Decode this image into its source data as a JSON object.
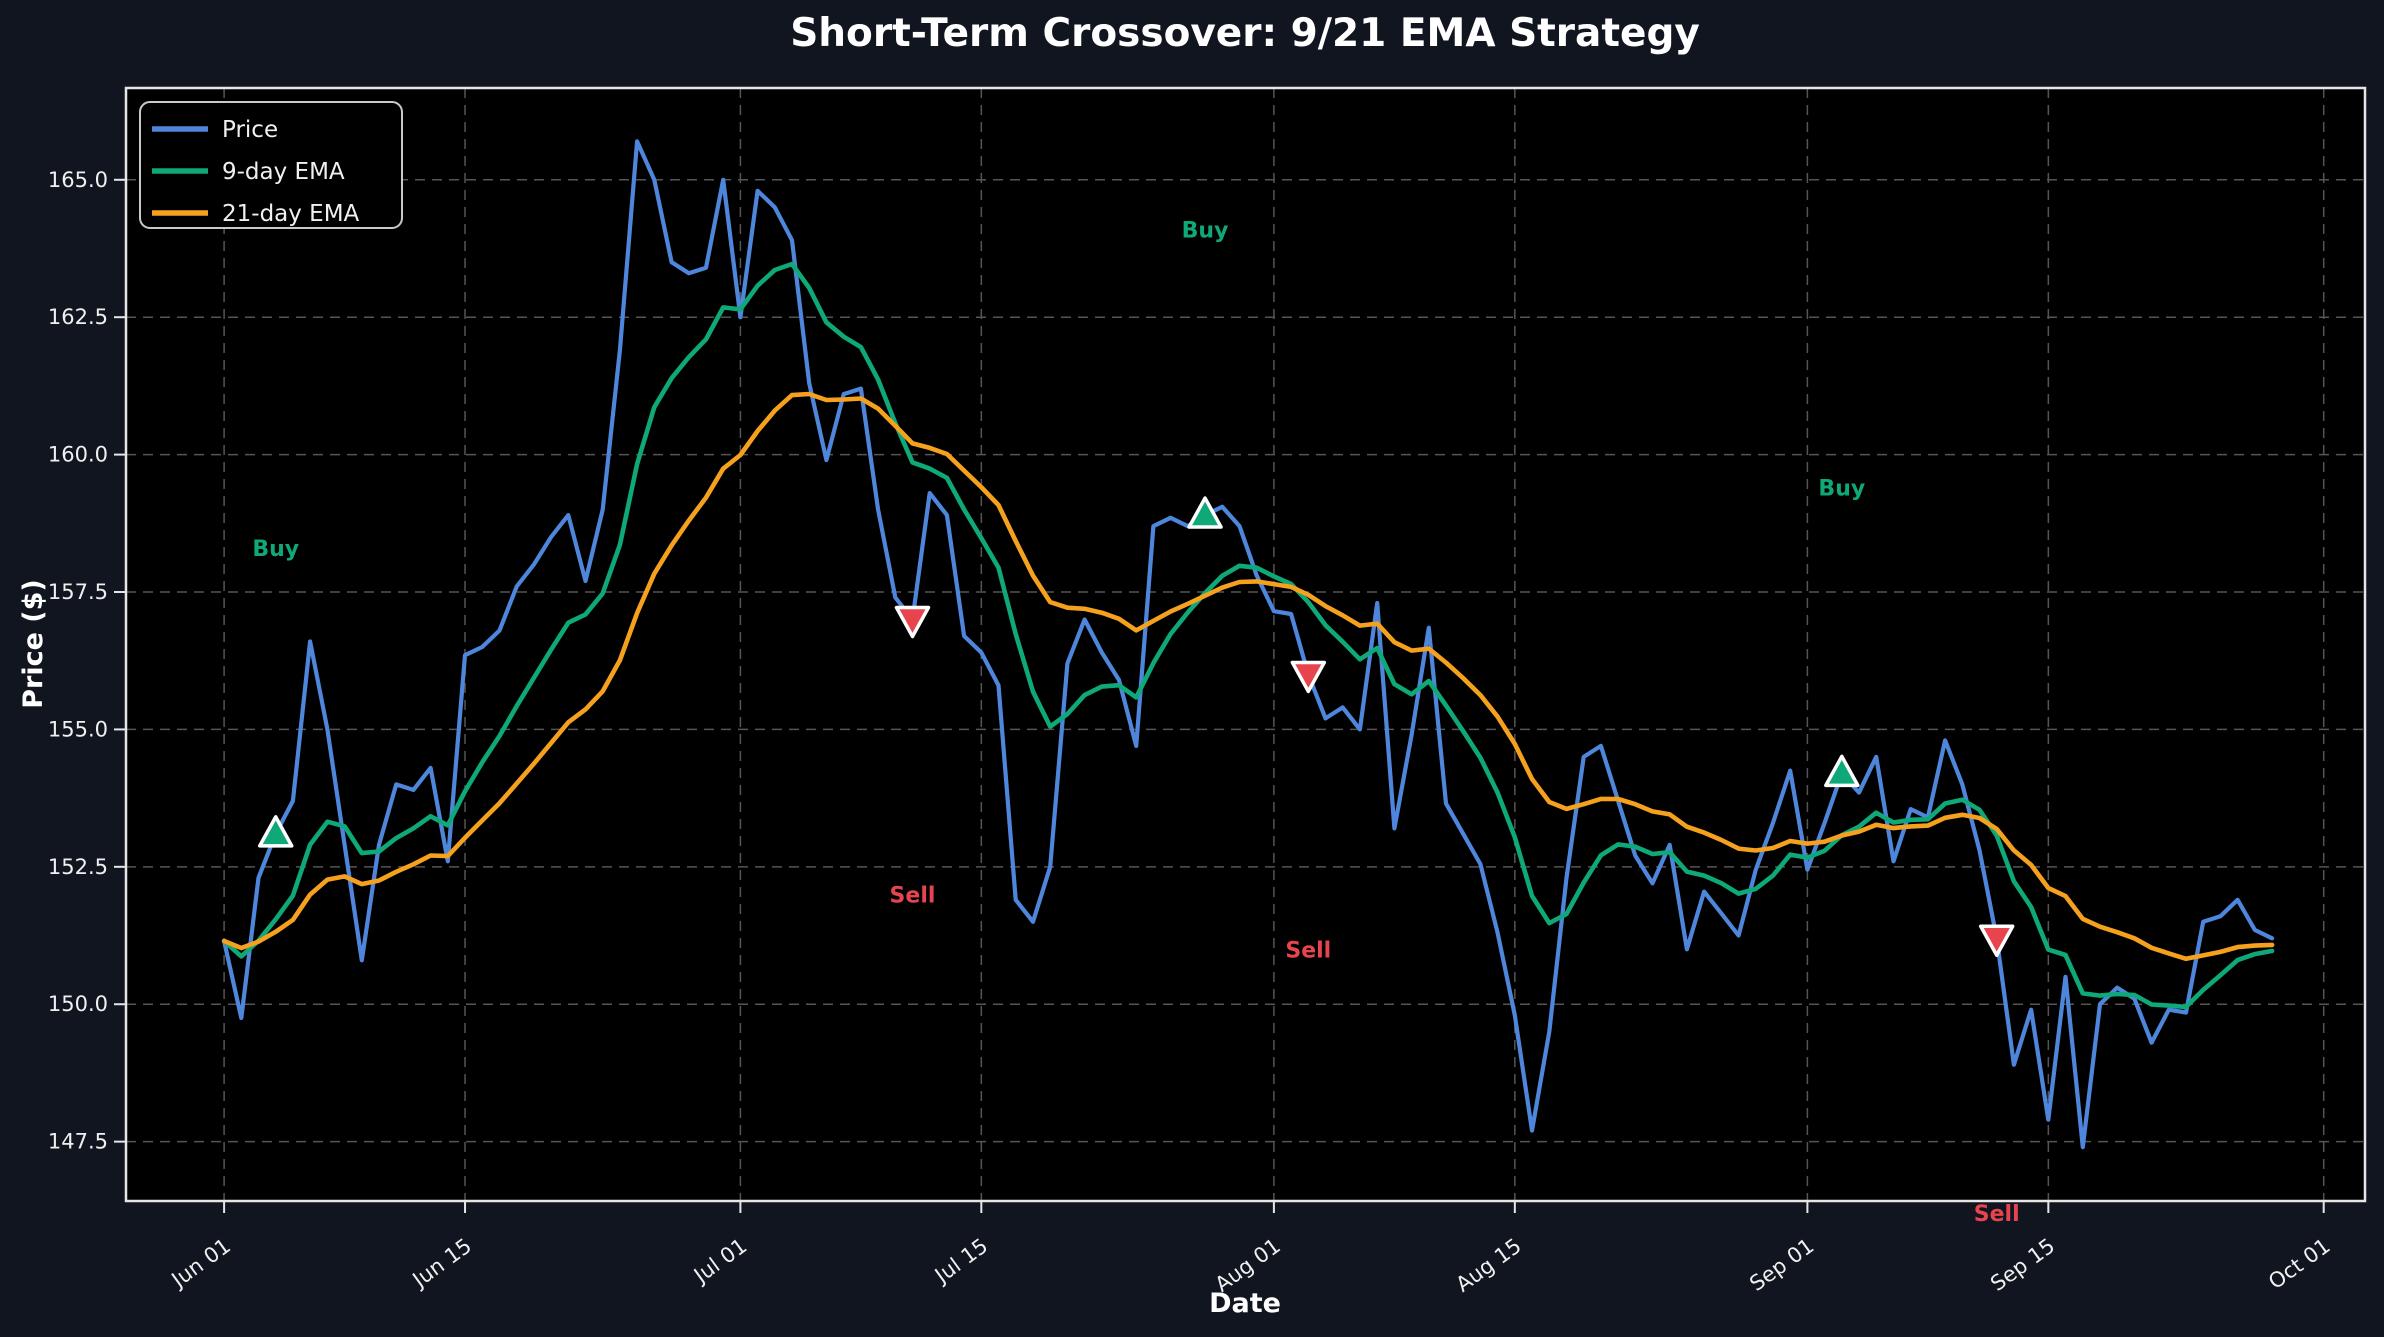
{
  "title": "Short-Term Crossover: 9/21 EMA Strategy",
  "axes": {
    "x_label": "Date",
    "y_label": "Price ($)"
  },
  "legend": {
    "position": "upper left",
    "items": [
      {
        "label": "Price",
        "color": "#4E86DB"
      },
      {
        "label": "9-day EMA",
        "color": "#0FA878"
      },
      {
        "label": "21-day EMA",
        "color": "#F6A11E"
      }
    ]
  },
  "colors": {
    "background": "#10151F",
    "plot_bg": "#000000",
    "grid": "#555555",
    "spine": "#E6E6E6",
    "tick_label": "#F0F0F0",
    "title": "#FFFFFF",
    "price": "#4E86DB",
    "ema9": "#0FA878",
    "ema21": "#F6A11E",
    "buy": "#0FA878",
    "sell": "#E8444E",
    "marker_edge": "#FFFFFF",
    "legend_bg": "#000000",
    "legend_border": "#C9C9C9"
  },
  "chart_data": {
    "type": "line",
    "title": "Short-Term Crossover: 9/21 EMA Strategy",
    "xlabel": "Date",
    "ylabel": "Price ($)",
    "start_date": "Jun 01",
    "end_date": "Sep 28",
    "frequency": "daily",
    "grid": true,
    "ylim": [
      146.42,
      166.67
    ],
    "xlim_index": [
      -5.7,
      124.4
    ],
    "y_ticks": [
      {
        "value": 147.5,
        "label": "147.5"
      },
      {
        "value": 150.0,
        "label": "150.0"
      },
      {
        "value": 152.5,
        "label": "152.5"
      },
      {
        "value": 155.0,
        "label": "155.0"
      },
      {
        "value": 157.5,
        "label": "157.5"
      },
      {
        "value": 160.0,
        "label": "160.0"
      },
      {
        "value": 162.5,
        "label": "162.5"
      },
      {
        "value": 165.0,
        "label": "165.0"
      }
    ],
    "x_ticks": [
      {
        "index": 0,
        "label": "Jun 01"
      },
      {
        "index": 14,
        "label": "Jun 15"
      },
      {
        "index": 30,
        "label": "Jul 01"
      },
      {
        "index": 44,
        "label": "Jul 15"
      },
      {
        "index": 61,
        "label": "Aug 01"
      },
      {
        "index": 75,
        "label": "Aug 15"
      },
      {
        "index": 92,
        "label": "Sep 01"
      },
      {
        "index": 106,
        "label": "Sep 15"
      },
      {
        "index": 122,
        "label": "Oct 01"
      }
    ],
    "ema_spans": [
      9,
      21
    ],
    "price": [
      151.15,
      149.75,
      152.3,
      153.1,
      153.7,
      156.6,
      155.0,
      152.9,
      150.8,
      152.9,
      154.0,
      153.9,
      154.3,
      152.6,
      156.35,
      156.5,
      156.8,
      157.6,
      158.0,
      158.5,
      158.9,
      157.7,
      159.0,
      161.9,
      165.7,
      165.0,
      163.5,
      163.3,
      163.4,
      165.0,
      162.5,
      164.8,
      164.5,
      163.9,
      161.3,
      159.9,
      161.1,
      161.2,
      159.0,
      157.4,
      157.0,
      159.3,
      158.9,
      156.7,
      156.4,
      155.8,
      151.9,
      151.5,
      152.5,
      156.2,
      157.0,
      156.4,
      155.9,
      154.7,
      158.7,
      158.85,
      158.7,
      158.9,
      159.05,
      158.7,
      157.8,
      157.15,
      157.1,
      156.0,
      155.2,
      155.4,
      155.0,
      157.3,
      153.2,
      154.9,
      156.85,
      153.65,
      153.1,
      152.55,
      151.3,
      149.8,
      147.7,
      149.5,
      152.3,
      154.5,
      154.7,
      153.7,
      152.7,
      152.2,
      152.9,
      151.0,
      152.05,
      151.65,
      151.25,
      152.45,
      153.3,
      154.25,
      152.45,
      153.3,
      154.2,
      153.85,
      154.5,
      152.6,
      153.55,
      153.4,
      154.8,
      154.0,
      152.8,
      151.2,
      148.9,
      149.9,
      147.9,
      150.5,
      147.4,
      150.0,
      150.3,
      150.1,
      149.3,
      149.9,
      149.85,
      151.5,
      151.6,
      151.9,
      151.35,
      151.2
    ],
    "signals": [
      {
        "type": "buy",
        "label": "Buy",
        "index": 3,
        "date": "Jun 04",
        "price": 153.1
      },
      {
        "type": "sell",
        "label": "Sell",
        "index": 40,
        "date": "Jul 11",
        "price": 157.0
      },
      {
        "type": "buy",
        "label": "Buy",
        "index": 57,
        "date": "Jul 28",
        "price": 158.9
      },
      {
        "type": "sell",
        "label": "Sell",
        "index": 63,
        "date": "Aug 03",
        "price": 156.0
      },
      {
        "type": "buy",
        "label": "Buy",
        "index": 94,
        "date": "Sep 03",
        "price": 154.2
      },
      {
        "type": "sell",
        "label": "Sell",
        "index": 103,
        "date": "Sep 12",
        "price": 151.2
      }
    ],
    "label_offset": {
      "buy": 5.2,
      "sell": -5.0
    }
  }
}
